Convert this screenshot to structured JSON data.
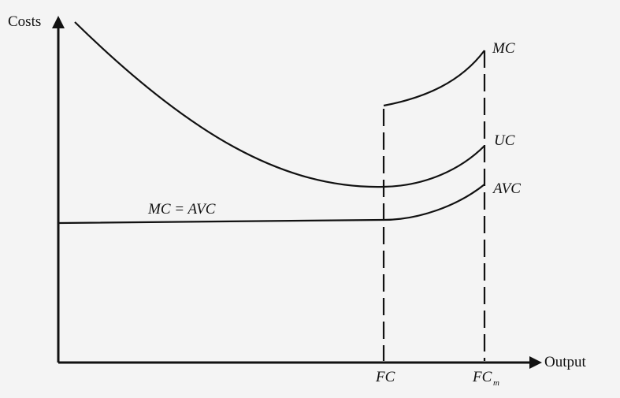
{
  "axes": {
    "y_label": "Costs",
    "x_label": "Output"
  },
  "curves": {
    "mc_label": "MC",
    "uc_label": "UC",
    "avc_label": "AVC",
    "mc_eq_avc_label": "MC = AVC"
  },
  "ticks": {
    "fc_label": "FC",
    "fc_max_main": "FC",
    "fc_max_sub": "m"
  }
}
